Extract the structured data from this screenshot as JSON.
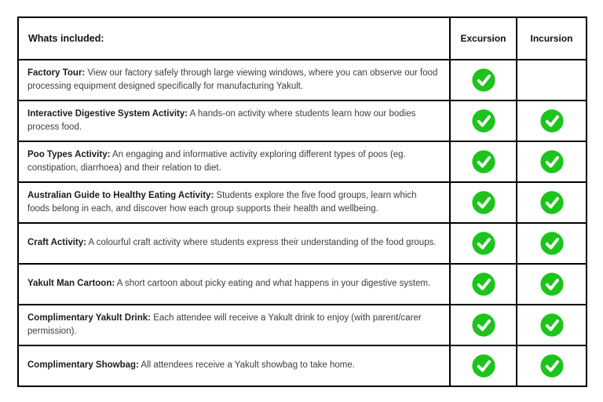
{
  "checkmark_color": "#1cc41c",
  "table": {
    "header": {
      "included_label": "Whats included:",
      "columns": [
        "Excursion",
        "Incursion"
      ]
    },
    "rows": [
      {
        "title": "Factory Tour:",
        "description": "View our factory safely through large viewing windows, where you can observe our food processing equipment designed specifically for manufacturing Yakult.",
        "excursion": true,
        "incursion": false
      },
      {
        "title": "Interactive Digestive System Activity:",
        "description": "A hands-on activity where students learn how our bodies process food.",
        "excursion": true,
        "incursion": true
      },
      {
        "title": "Poo Types Activity:",
        "description": "An engaging and informative activity exploring different types of poos (eg. constipation, diarrhoea) and their relation to diet.",
        "excursion": true,
        "incursion": true
      },
      {
        "title": "Australian Guide to Healthy Eating Activity:",
        "description": "Students explore the five food groups, learn which foods belong in each, and discover how each group supports their health and wellbeing.",
        "excursion": true,
        "incursion": true
      },
      {
        "title": "Craft Activity:",
        "description": "A colourful craft activity where students express their understanding of the food groups.",
        "excursion": true,
        "incursion": true
      },
      {
        "title": "Yakult Man Cartoon:",
        "description": "A short cartoon about picky eating and what happens in your digestive system.",
        "excursion": true,
        "incursion": true
      },
      {
        "title": "Complimentary Yakult Drink:",
        "description": "Each attendee will receive a Yakult drink to enjoy (with parent/carer permission).",
        "excursion": true,
        "incursion": true
      },
      {
        "title": "Complimentary Showbag:",
        "description": "All attendees receive a Yakult showbag to take home.",
        "excursion": true,
        "incursion": true
      }
    ]
  }
}
